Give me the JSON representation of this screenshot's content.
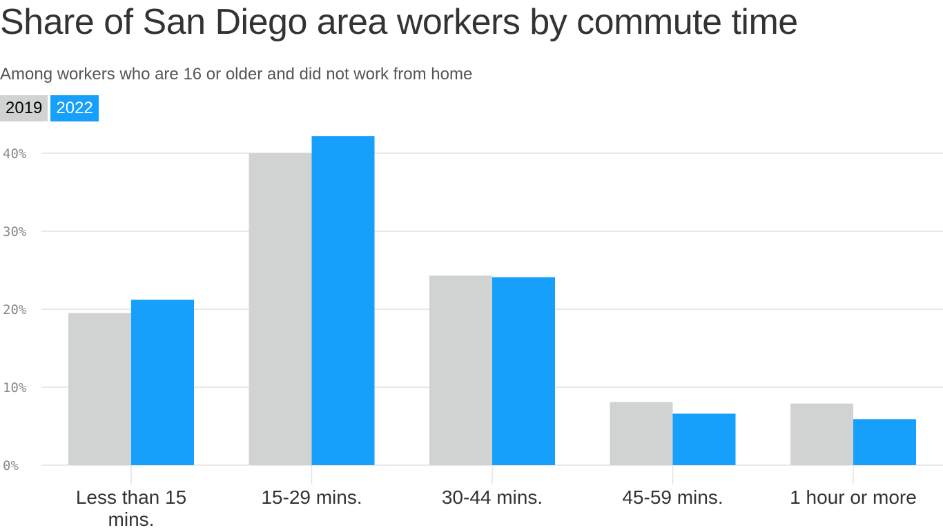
{
  "title": "Share of San Diego area workers by commute time",
  "subtitle": "Among workers who are 16 or older and did not work from home",
  "colors": {
    "y2019": "#d1d3d2",
    "y2022": "#16a0fc",
    "grid": "#e2e2e2",
    "tick_text": "#888888",
    "axis_text": "#333333"
  },
  "chart_data": {
    "type": "bar",
    "categories": [
      [
        "Less than 15",
        "mins."
      ],
      [
        "15-29 mins."
      ],
      [
        "30-44 mins."
      ],
      [
        "45-59 mins."
      ],
      [
        "1 hour or more"
      ]
    ],
    "series": [
      {
        "name": "2019",
        "values": [
          19.5,
          40.0,
          24.3,
          8.1,
          7.9
        ]
      },
      {
        "name": "2022",
        "values": [
          21.2,
          42.2,
          24.1,
          6.6,
          5.9
        ]
      }
    ],
    "ylim": [
      0,
      40
    ],
    "yticks": [
      0,
      10,
      20,
      30,
      40
    ],
    "ytick_labels": [
      "0%",
      "10%",
      "20%",
      "30%",
      "40%"
    ],
    "xlabel": "",
    "ylabel": "",
    "grid": true,
    "legend": "top-left"
  }
}
